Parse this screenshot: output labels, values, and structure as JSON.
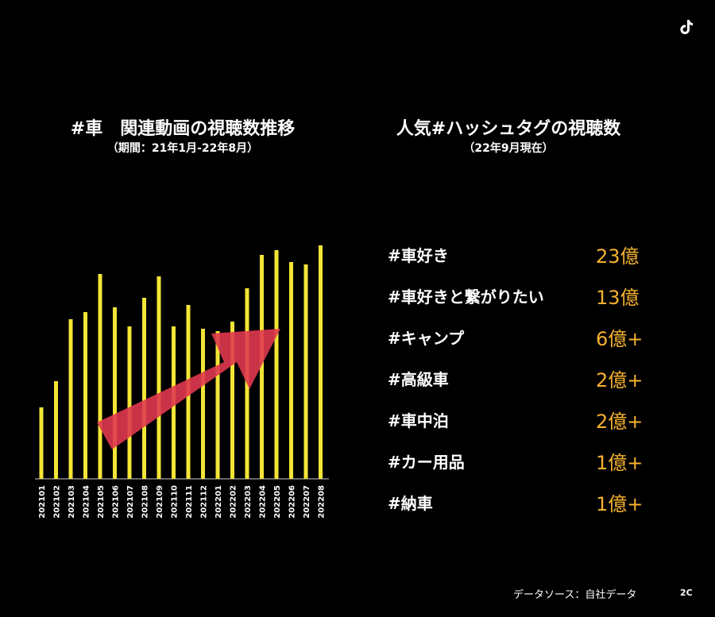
{
  "left_panel": {
    "title": "#車　関連動画の視聴数推移",
    "subtitle": "（期間：21年1月-22年8月）"
  },
  "right_panel": {
    "title": "人気#ハッシュタグの視聴数",
    "subtitle": "（22年9月現在）",
    "hashtags": [
      {
        "name": "#車好き",
        "views": "23億"
      },
      {
        "name": "#車好きと繋がりたい",
        "views": "13億"
      },
      {
        "name": "#キャンプ",
        "views": "6億+"
      },
      {
        "name": "#高級車",
        "views": "2億+"
      },
      {
        "name": "#車中泊",
        "views": "2億+"
      },
      {
        "name": "#カー用品",
        "views": "1億+"
      },
      {
        "name": "#納車",
        "views": "1億+"
      }
    ]
  },
  "chart_data": {
    "type": "bar",
    "title": "#車　関連動画の視聴数推移",
    "categories": [
      "202101",
      "202102",
      "202103",
      "202104",
      "202105",
      "202106",
      "202107",
      "202108",
      "202109",
      "202110",
      "202111",
      "202112",
      "202201",
      "202202",
      "202203",
      "202204",
      "202205",
      "202206",
      "202207",
      "202208"
    ],
    "values": [
      30,
      41,
      67,
      70,
      86,
      72,
      64,
      76,
      85,
      64,
      73,
      63,
      62,
      66,
      80,
      94,
      96,
      91,
      90,
      98
    ],
    "ylim": [
      0,
      100
    ],
    "bar_color": "#F3E536",
    "arrow_color": "#E0384F",
    "grid": false,
    "legend": "none"
  },
  "footer": {
    "source": "データソース：自社データ",
    "page_number": "2C"
  },
  "icons": {
    "logo": "tiktok-icon"
  },
  "colors": {
    "background": "#000000",
    "accent": "#F5B22E"
  }
}
